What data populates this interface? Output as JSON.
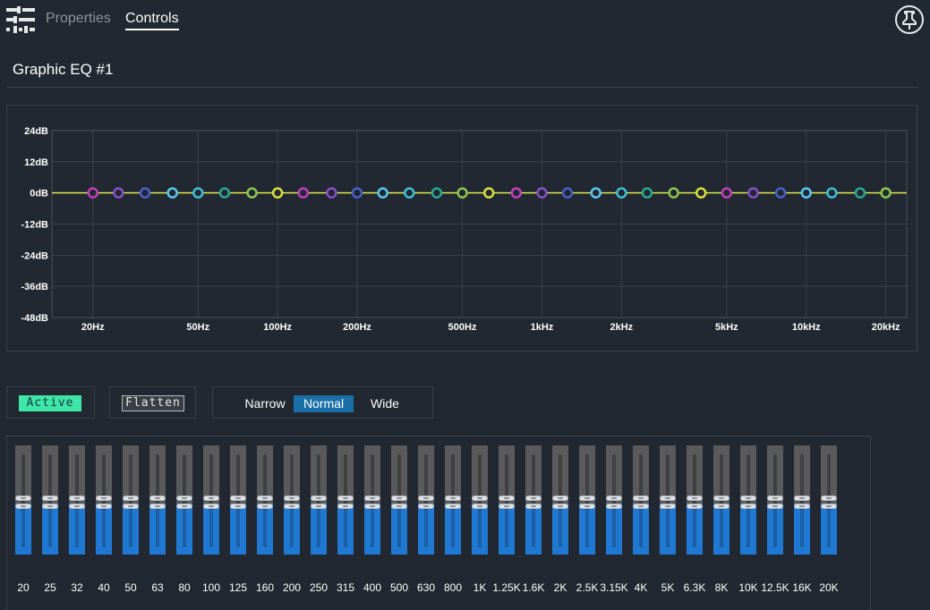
{
  "header": {
    "menu_icon": "sliders-icon",
    "tabs": [
      {
        "label": "Properties",
        "active": false
      },
      {
        "label": "Controls",
        "active": true
      }
    ],
    "pin_icon": "pin-icon"
  },
  "title": "Graphic EQ #1",
  "chart_data": {
    "type": "line",
    "title": "",
    "xlabel": "",
    "ylabel": "",
    "x_scale": "log",
    "xlim": [
      14,
      24000
    ],
    "ylim": [
      -48,
      24
    ],
    "grid": true,
    "y_ticks": [
      "24dB",
      "12dB",
      "0dB",
      "-12dB",
      "-24dB",
      "-36dB",
      "-48dB"
    ],
    "y_tick_values": [
      24,
      12,
      0,
      -12,
      -24,
      -36,
      -48
    ],
    "x_ticks": [
      "20Hz",
      "50Hz",
      "100Hz",
      "200Hz",
      "500Hz",
      "1kHz",
      "2kHz",
      "5kHz",
      "10kHz",
      "20kHz"
    ],
    "x_tick_values": [
      20,
      50,
      100,
      200,
      500,
      1000,
      2000,
      5000,
      10000,
      20000
    ],
    "series": [
      {
        "x": [
          20,
          25,
          31.5,
          40,
          50,
          63,
          80,
          100,
          125,
          160,
          200,
          250,
          315,
          400,
          500,
          630,
          800,
          1000,
          1250,
          1600,
          2000,
          2500,
          3150,
          4000,
          5000,
          6300,
          8000,
          10000,
          12500,
          16000,
          20000
        ],
        "y": [
          0,
          0,
          0,
          0,
          0,
          0,
          0,
          0,
          0,
          0,
          0,
          0,
          0,
          0,
          0,
          0,
          0,
          0,
          0,
          0,
          0,
          0,
          0,
          0,
          0,
          0,
          0,
          0,
          0,
          0,
          0
        ]
      }
    ],
    "curve_color": "#d9e84a",
    "point_colors": [
      "#c040c0",
      "#8a4fc9",
      "#4a5fc9",
      "#5ac8f0",
      "#40c0d8",
      "#2aa894",
      "#8cc850",
      "#d8e040"
    ]
  },
  "controls": {
    "active_label": "Active",
    "flatten_label": "Flatten",
    "width_options": [
      {
        "label": "Narrow",
        "selected": false
      },
      {
        "label": "Normal",
        "selected": true
      },
      {
        "label": "Wide",
        "selected": false
      }
    ]
  },
  "bands": {
    "labels": [
      "20",
      "25",
      "32",
      "40",
      "50",
      "63",
      "80",
      "100",
      "125",
      "160",
      "200",
      "250",
      "315",
      "400",
      "500",
      "630",
      "800",
      "1K",
      "1.25K",
      "1.6K",
      "2K",
      "2.5K",
      "3.15K",
      "4K",
      "5K",
      "6.3K",
      "8K",
      "10K",
      "12.5K",
      "16K",
      "20K"
    ],
    "gains_db": [
      0,
      0,
      0,
      0,
      0,
      0,
      0,
      0,
      0,
      0,
      0,
      0,
      0,
      0,
      0,
      0,
      0,
      0,
      0,
      0,
      0,
      0,
      0,
      0,
      0,
      0,
      0,
      0,
      0,
      0,
      0
    ],
    "level_fraction": 0.5
  }
}
